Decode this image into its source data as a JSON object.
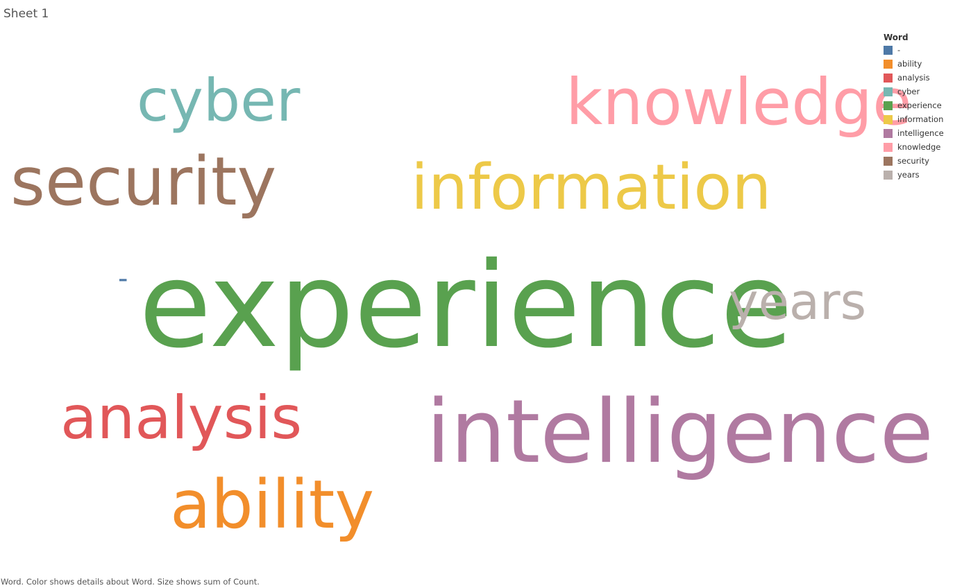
{
  "sheet": {
    "title": "Sheet 1"
  },
  "chart_data": {
    "type": "word-cloud",
    "size_measure": "sum of Count",
    "color_dimension": "Word",
    "words": [
      {
        "word": "experience",
        "color": "#59a14f",
        "size_rank": 1
      },
      {
        "word": "intelligence",
        "color": "#b07aa1",
        "size_rank": 2
      },
      {
        "word": "knowledge",
        "color": "#ff9da7",
        "size_rank": 3
      },
      {
        "word": "information",
        "color": "#edc948",
        "size_rank": 4
      },
      {
        "word": "security",
        "color": "#9c755f",
        "size_rank": 5
      },
      {
        "word": "ability",
        "color": "#f28e2b",
        "size_rank": 6
      },
      {
        "word": "analysis",
        "color": "#e15759",
        "size_rank": 7
      },
      {
        "word": "cyber",
        "color": "#76b7b2",
        "size_rank": 8
      },
      {
        "word": "years",
        "color": "#bab0ac",
        "size_rank": 9
      },
      {
        "word": "-",
        "color": "#4e79a7",
        "size_rank": 10
      }
    ]
  },
  "legend": {
    "title": "Word",
    "items": [
      {
        "label": "-",
        "color": "#4e79a7"
      },
      {
        "label": "ability",
        "color": "#f28e2b"
      },
      {
        "label": "analysis",
        "color": "#e15759"
      },
      {
        "label": "cyber",
        "color": "#76b7b2"
      },
      {
        "label": "experience",
        "color": "#59a14f"
      },
      {
        "label": "information",
        "color": "#edc948"
      },
      {
        "label": "intelligence",
        "color": "#b07aa1"
      },
      {
        "label": "knowledge",
        "color": "#ff9da7"
      },
      {
        "label": "security",
        "color": "#9c755f"
      },
      {
        "label": "years",
        "color": "#bab0ac"
      }
    ]
  },
  "caption": "Word.  Color shows details about Word.  Size shows sum of Count."
}
